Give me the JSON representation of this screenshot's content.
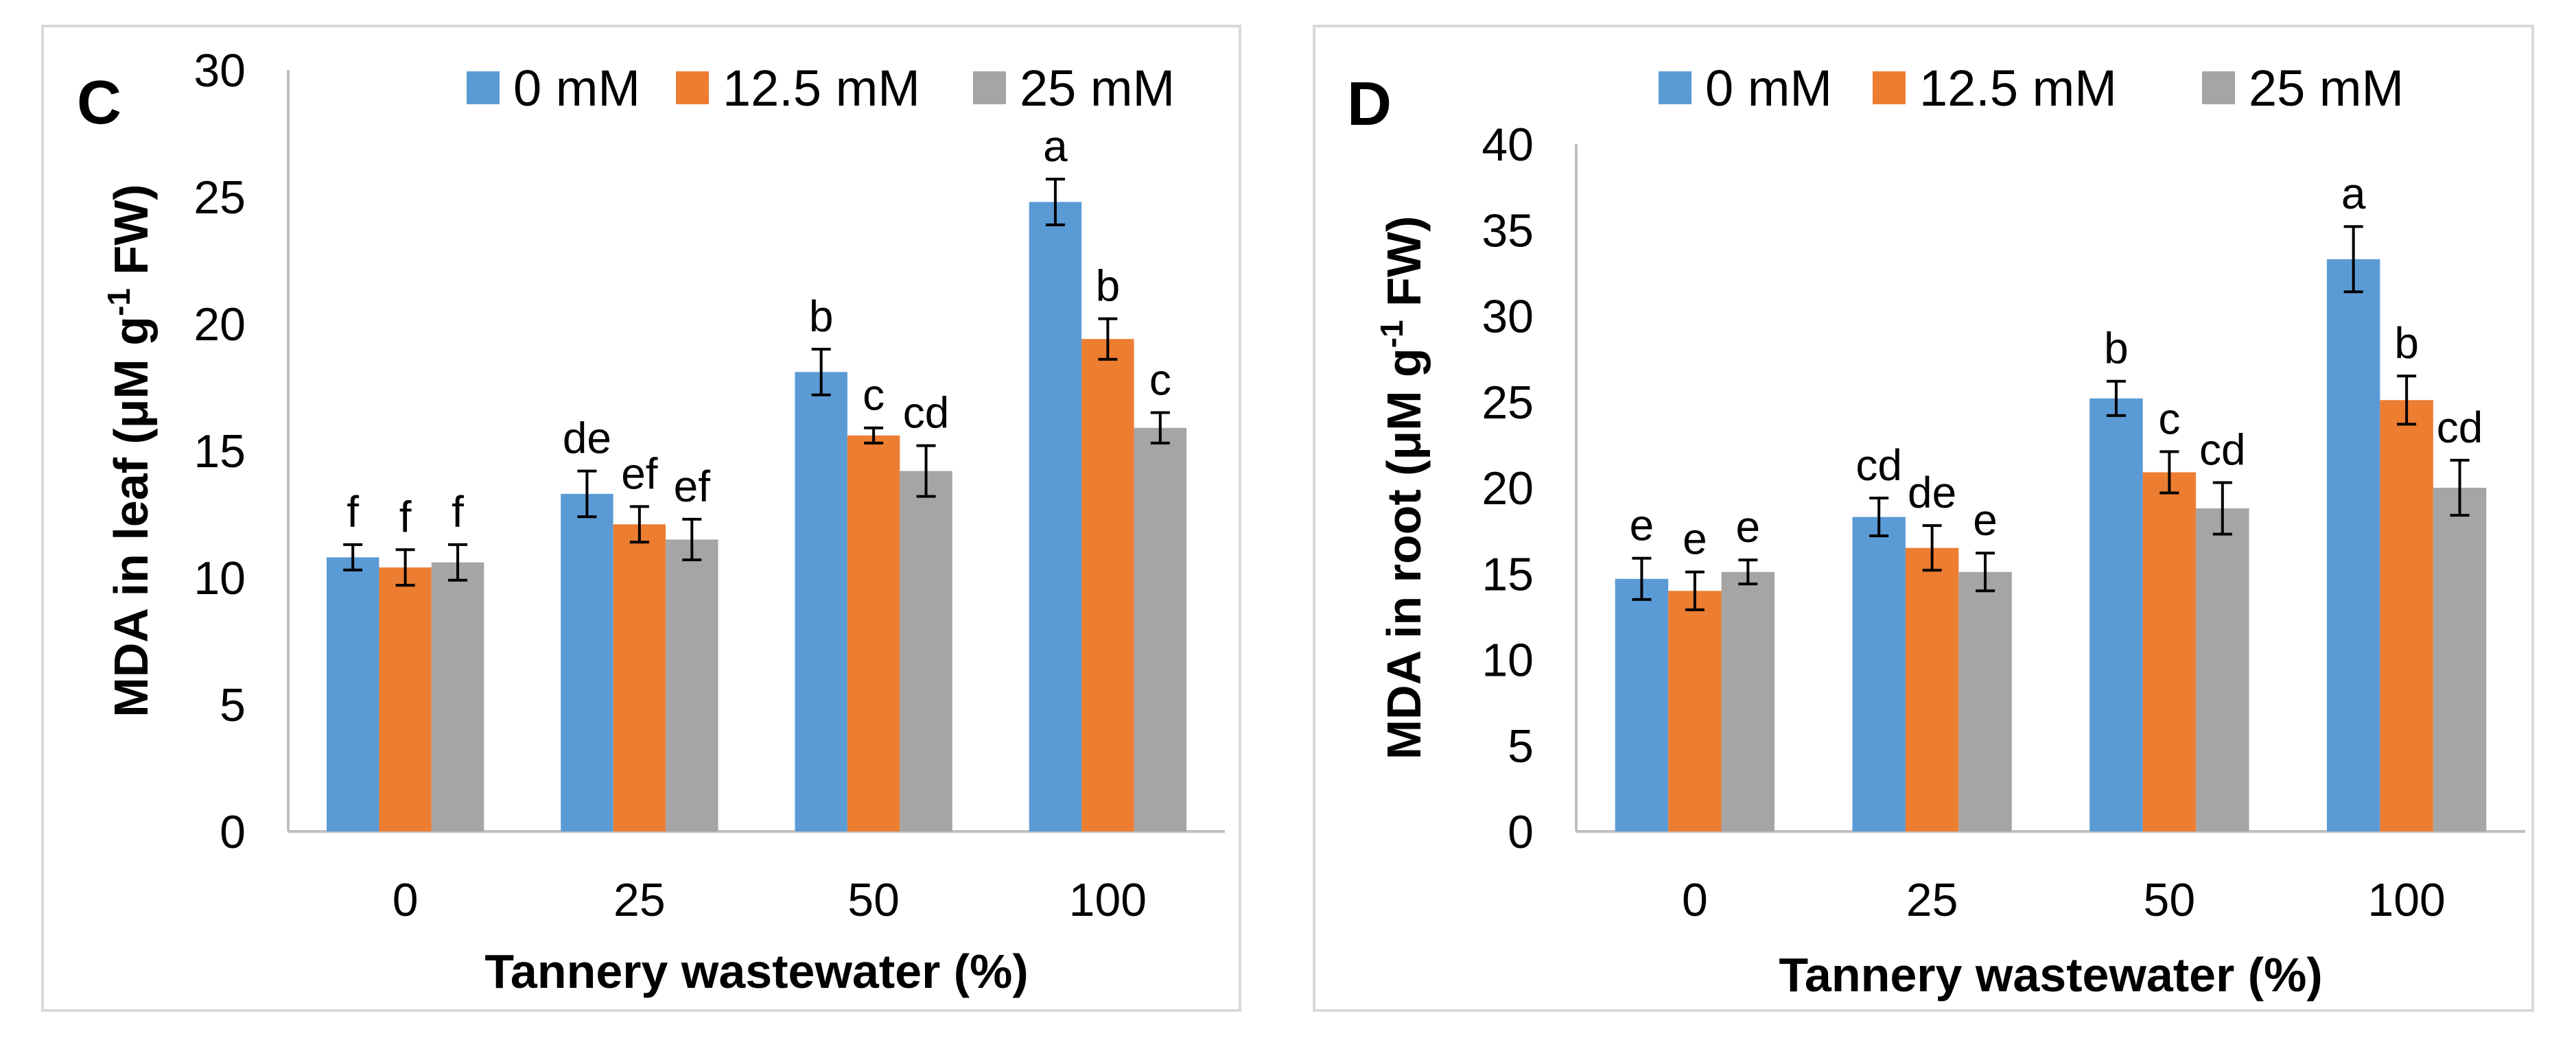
{
  "figure": {
    "panels": [
      {
        "panel_label": "C",
        "chart_data": {
          "type": "bar",
          "categories": [
            "0",
            "25",
            "50",
            "100"
          ],
          "series": [
            {
              "name": "0 mM",
              "color": "#5b9bd5",
              "values": [
                10.8,
                13.3,
                18.1,
                24.8
              ],
              "errors": [
                0.5,
                0.9,
                0.9,
                0.9
              ],
              "letters": [
                "f",
                "de",
                "b",
                "a"
              ]
            },
            {
              "name": "12.5 mM",
              "color": "#ed7d31",
              "values": [
                10.4,
                12.1,
                15.6,
                19.4
              ],
              "errors": [
                0.7,
                0.7,
                0.3,
                0.8
              ],
              "letters": [
                "f",
                "ef",
                "c",
                "b"
              ]
            },
            {
              "name": "25 mM",
              "color": "#a5a5a5",
              "values": [
                10.6,
                11.5,
                14.2,
                15.9
              ],
              "errors": [
                0.7,
                0.8,
                1.0,
                0.6
              ],
              "letters": [
                "f",
                "ef",
                "cd",
                "c"
              ]
            }
          ],
          "xlabel": "Tannery wastewater (%)",
          "ylabel_main": "MDA in leaf (μM g",
          "ylabel_sup": "-1",
          "ylabel_end": " FW)",
          "ylim": [
            0,
            30
          ],
          "yticks": [
            0,
            5,
            10,
            15,
            20,
            25,
            30
          ],
          "grid": false,
          "legend_position": "top"
        }
      },
      {
        "panel_label": "D",
        "chart_data": {
          "type": "bar",
          "categories": [
            "0",
            "25",
            "50",
            "100"
          ],
          "series": [
            {
              "name": "0 mM",
              "color": "#5b9bd5",
              "values": [
                14.7,
                18.3,
                25.2,
                33.3
              ],
              "errors": [
                1.2,
                1.1,
                1.0,
                1.9
              ],
              "letters": [
                "e",
                "cd",
                "b",
                "a"
              ]
            },
            {
              "name": "12.5 mM",
              "color": "#ed7d31",
              "values": [
                14.0,
                16.5,
                20.9,
                25.1
              ],
              "errors": [
                1.1,
                1.3,
                1.2,
                1.4
              ],
              "letters": [
                "e",
                "de",
                "c",
                "b"
              ]
            },
            {
              "name": "25 mM",
              "color": "#a5a5a5",
              "values": [
                15.1,
                15.1,
                18.8,
                20.0
              ],
              "errors": [
                0.7,
                1.1,
                1.5,
                1.6
              ],
              "letters": [
                "e",
                "e",
                "cd",
                "cd"
              ]
            }
          ],
          "xlabel": "Tannery wastewater (%)",
          "ylabel_main": "MDA in root (μM g",
          "ylabel_sup": "-1",
          "ylabel_end": " FW)",
          "ylim": [
            0,
            40
          ],
          "yticks": [
            0,
            5,
            10,
            15,
            20,
            25,
            30,
            35,
            40
          ],
          "grid": false,
          "legend_position": "top"
        }
      }
    ]
  }
}
